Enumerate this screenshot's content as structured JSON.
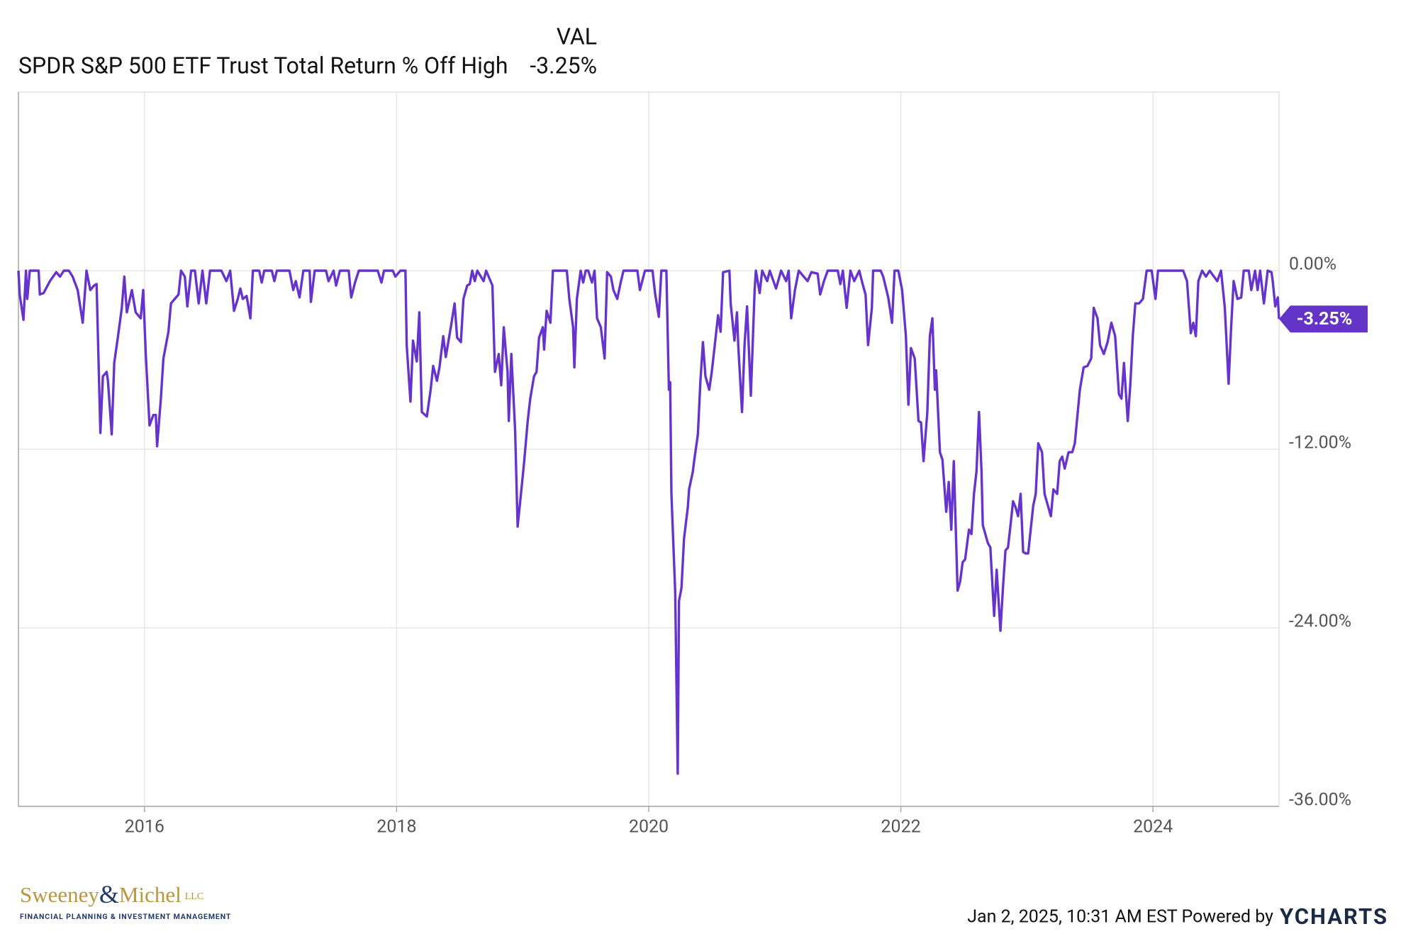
{
  "chart_data": {
    "type": "line",
    "legend": {
      "column_header": "VAL",
      "value_label": "-3.25%"
    },
    "xlim": [
      2015,
      2025
    ],
    "xticks": [
      2016,
      2018,
      2020,
      2022,
      2024
    ],
    "ylim": [
      -36,
      12
    ],
    "yticks": [
      {
        "value": 0,
        "label": "0.00%"
      },
      {
        "value": -12,
        "label": "-12.00%"
      },
      {
        "value": -24,
        "label": "-24.00%"
      },
      {
        "value": -36,
        "label": "-36.00%"
      }
    ],
    "grid": true,
    "x": [
      2015.0,
      2015.01,
      2015.04,
      2015.06,
      2015.07,
      2015.09,
      2015.16,
      2015.17,
      2015.2,
      2015.25,
      2015.3,
      2015.33,
      2015.36,
      2015.4,
      2015.43,
      2015.47,
      2015.51,
      2015.54,
      2015.57,
      2015.6,
      2015.62,
      2015.65,
      2015.67,
      2015.7,
      2015.71,
      2015.74,
      2015.76,
      2015.79,
      2015.82,
      2015.84,
      2015.86,
      2015.9,
      2015.93,
      2015.97,
      2015.99,
      2016.01,
      2016.04,
      2016.07,
      2016.09,
      2016.1,
      2016.13,
      2016.15,
      2016.19,
      2016.21,
      2016.24,
      2016.27,
      2016.29,
      2016.32,
      2016.34,
      2016.37,
      2016.4,
      2016.43,
      2016.46,
      2016.49,
      2016.52,
      2016.61,
      2016.65,
      2016.68,
      2016.71,
      2016.74,
      2016.76,
      2016.78,
      2016.81,
      2016.84,
      2016.86,
      2016.91,
      2016.93,
      2016.95,
      2017.01,
      2017.03,
      2017.05,
      2017.15,
      2017.18,
      2017.2,
      2017.23,
      2017.26,
      2017.31,
      2017.32,
      2017.35,
      2017.44,
      2017.46,
      2017.5,
      2017.52,
      2017.55,
      2017.62,
      2017.64,
      2017.67,
      2017.7,
      2017.85,
      2017.88,
      2017.9,
      2017.97,
      2017.99,
      2018.03,
      2018.07,
      2018.08,
      2018.11,
      2018.13,
      2018.16,
      2018.18,
      2018.2,
      2018.24,
      2018.27,
      2018.29,
      2018.32,
      2018.34,
      2018.37,
      2018.39,
      2018.43,
      2018.46,
      2018.48,
      2018.51,
      2018.53,
      2018.56,
      2018.58,
      2018.6,
      2018.62,
      2018.64,
      2018.69,
      2018.71,
      2018.76,
      2018.78,
      2018.81,
      2018.83,
      2018.85,
      2018.88,
      2018.89,
      2018.91,
      2018.94,
      2018.96,
      2018.99,
      2019.01,
      2019.04,
      2019.06,
      2019.09,
      2019.11,
      2019.13,
      2019.16,
      2019.17,
      2019.19,
      2019.22,
      2019.24,
      2019.35,
      2019.37,
      2019.4,
      2019.41,
      2019.43,
      2019.46,
      2019.48,
      2019.5,
      2019.52,
      2019.55,
      2019.57,
      2019.59,
      2019.62,
      2019.65,
      2019.67,
      2019.7,
      2019.72,
      2019.75,
      2019.78,
      2019.8,
      2019.91,
      2019.93,
      2019.97,
      2020.03,
      2020.05,
      2020.08,
      2020.1,
      2020.14,
      2020.16,
      2020.17,
      2020.18,
      2020.21,
      2020.23,
      2020.24,
      2020.26,
      2020.28,
      2020.31,
      2020.32,
      2020.35,
      2020.36,
      2020.39,
      2020.41,
      2020.43,
      2020.45,
      2020.48,
      2020.5,
      2020.52,
      2020.55,
      2020.57,
      2020.59,
      2020.64,
      2020.65,
      2020.68,
      2020.7,
      2020.71,
      2020.74,
      2020.76,
      2020.78,
      2020.81,
      2020.84,
      2020.85,
      2020.88,
      2020.9,
      2020.94,
      2020.96,
      2021.01,
      2021.05,
      2021.09,
      2021.11,
      2021.13,
      2021.16,
      2021.19,
      2021.26,
      2021.29,
      2021.34,
      2021.36,
      2021.39,
      2021.42,
      2021.5,
      2021.52,
      2021.54,
      2021.57,
      2021.6,
      2021.63,
      2021.67,
      2021.7,
      2021.72,
      2021.74,
      2021.77,
      2021.78,
      2021.84,
      2021.86,
      2021.9,
      2021.93,
      2021.95,
      2021.98,
      2022.01,
      2022.04,
      2022.06,
      2022.08,
      2022.11,
      2022.14,
      2022.16,
      2022.18,
      2022.21,
      2022.23,
      2022.25,
      2022.27,
      2022.28,
      2022.31,
      2022.33,
      2022.36,
      2022.38,
      2022.4,
      2022.42,
      2022.45,
      2022.47,
      2022.49,
      2022.51,
      2022.54,
      2022.56,
      2022.58,
      2022.6,
      2022.62,
      2022.64,
      2022.65,
      2022.67,
      2022.69,
      2022.71,
      2022.74,
      2022.76,
      2022.79,
      2022.81,
      2022.83,
      2022.85,
      2022.87,
      2022.89,
      2022.91,
      2022.93,
      2022.95,
      2022.97,
      2022.99,
      2023.01,
      2023.03,
      2023.05,
      2023.07,
      2023.09,
      2023.12,
      2023.14,
      2023.16,
      2023.19,
      2023.21,
      2023.24,
      2023.26,
      2023.28,
      2023.3,
      2023.33,
      2023.36,
      2023.38,
      2023.4,
      2023.42,
      2023.45,
      2023.48,
      2023.51,
      2023.53,
      2023.56,
      2023.58,
      2023.61,
      2023.64,
      2023.67,
      2023.7,
      2023.73,
      2023.75,
      2023.77,
      2023.8,
      2023.82,
      2023.84,
      2023.86,
      2023.89,
      2023.92,
      2023.95,
      2023.99,
      2024.02,
      2024.04,
      2024.24,
      2024.27,
      2024.3,
      2024.32,
      2024.34,
      2024.36,
      2024.39,
      2024.42,
      2024.45,
      2024.51,
      2024.54,
      2024.57,
      2024.6,
      2024.62,
      2024.64,
      2024.67,
      2024.7,
      2024.72,
      2024.76,
      2024.78,
      2024.81,
      2024.83,
      2024.85,
      2024.88,
      2024.91,
      2024.94,
      2024.95,
      2024.97,
      2024.99,
      2025.0
    ],
    "series": [
      {
        "name": "SPDR S&P 500 ETF Trust Total Return % Off High",
        "color": "#6633cc",
        "values": [
          0,
          -1.6,
          -3.3,
          0,
          -1.9,
          0,
          0,
          -1.6,
          -1.5,
          -0.7,
          -0.1,
          -0.4,
          0,
          0,
          -0.4,
          -1.3,
          -3.5,
          0,
          -1.3,
          -1.0,
          -0.9,
          -10.9,
          -7.1,
          -6.8,
          -7.4,
          -11.0,
          -6.2,
          -4.4,
          -2.5,
          -0.4,
          -2.8,
          -1.3,
          -2.8,
          -3.2,
          -1.3,
          -5.6,
          -10.4,
          -9.7,
          -9.7,
          -11.8,
          -8.6,
          -5.9,
          -4.1,
          -2.2,
          -1.9,
          -1.6,
          0,
          -0.4,
          -2.4,
          0,
          0,
          -2.2,
          0,
          -2.2,
          0,
          0,
          -0.7,
          0,
          -2.7,
          -1.9,
          -1.2,
          -1.9,
          -1.7,
          -3.2,
          0,
          0,
          -0.8,
          0,
          0,
          -0.7,
          0,
          0,
          -1.3,
          -0.7,
          -1.8,
          0,
          0,
          -2.1,
          0,
          0,
          -0.7,
          0,
          -1.0,
          0,
          0,
          -1.8,
          -0.8,
          0,
          0,
          -0.8,
          0,
          0,
          -0.4,
          0,
          0,
          -5.0,
          -8.8,
          -4.7,
          -6.1,
          -2.8,
          -9.5,
          -9.8,
          -8.0,
          -6.4,
          -7.4,
          -6.5,
          -4.4,
          -5.8,
          -3.8,
          -2.2,
          -4.5,
          -4.8,
          -1.9,
          -1.0,
          -0.9,
          0,
          -0.7,
          0,
          -0.7,
          0,
          -1.0,
          -6.8,
          -5.6,
          -7.7,
          -3.8,
          -6.8,
          -10.1,
          -5.6,
          -10.7,
          -17.2,
          -14.7,
          -13.0,
          -10.1,
          -8.6,
          -7.1,
          -6.8,
          -4.5,
          -3.8,
          -5.3,
          -2.7,
          -3.5,
          0,
          0,
          -1.9,
          -3.8,
          -6.5,
          -1.9,
          0,
          -0.8,
          0,
          0,
          -0.8,
          0,
          -3.2,
          -3.8,
          -5.9,
          -0.1,
          -0.4,
          -1.3,
          -1.9,
          -0.7,
          0,
          0,
          -1.3,
          0,
          0,
          -1.5,
          -3.1,
          0,
          0,
          -8.0,
          -7.5,
          -15.0,
          -21.6,
          -33.8,
          -22.2,
          -21.3,
          -18.0,
          -15.9,
          -14.7,
          -13.5,
          -12.8,
          -11.0,
          -7.4,
          -4.8,
          -7.1,
          -8.0,
          -6.8,
          -5.3,
          -3.0,
          -4.1,
          -0.1,
          0,
          -2.2,
          -4.7,
          -2.8,
          -5.0,
          -9.5,
          -5.0,
          -2.4,
          -8.4,
          -1.3,
          0,
          -1.5,
          0,
          -0.7,
          0,
          -1.2,
          0,
          -0.7,
          0,
          -3.2,
          -1.3,
          0,
          -0.7,
          -0.1,
          -0.2,
          -1.6,
          -0.7,
          0,
          0,
          -0.9,
          0,
          -2.5,
          0,
          -0.7,
          0,
          -1.0,
          -1.6,
          -5.0,
          -2.5,
          0,
          0,
          -0.4,
          -1.8,
          -3.5,
          0,
          0,
          -1.3,
          -4.4,
          -9.0,
          -5.2,
          -5.9,
          -10.1,
          -10.2,
          -12.8,
          -9.5,
          -4.4,
          -3.2,
          -8.0,
          -6.7,
          -12.2,
          -12.7,
          -16.2,
          -14.2,
          -17.4,
          -12.8,
          -21.5,
          -20.9,
          -19.6,
          -19.4,
          -17.4,
          -17.7,
          -15.0,
          -13.5,
          -9.5,
          -13.5,
          -17.1,
          -17.7,
          -18.3,
          -18.6,
          -23.2,
          -20.1,
          -24.2,
          -21.3,
          -18.8,
          -18.6,
          -17.1,
          -15.5,
          -15.9,
          -16.5,
          -15.0,
          -18.9,
          -19.0,
          -19.0,
          -17.4,
          -15.8,
          -15.0,
          -11.6,
          -12.2,
          -15.0,
          -15.6,
          -16.5,
          -14.7,
          -15.0,
          -12.8,
          -12.5,
          -13.3,
          -12.2,
          -12.2,
          -11.6,
          -9.8,
          -8.0,
          -6.5,
          -6.4,
          -5.9,
          -2.5,
          -3.2,
          -5.0,
          -5.6,
          -4.8,
          -3.5,
          -4.4,
          -8.3,
          -8.6,
          -6.2,
          -10.1,
          -7.7,
          -4.4,
          -2.2,
          -2.2,
          -1.9,
          0,
          0,
          -1.9,
          0,
          0,
          -0.7,
          -4.2,
          -3.5,
          -4.4,
          -0.7,
          0,
          -0.4,
          0,
          -0.7,
          0,
          -2.5,
          -7.6,
          -3.8,
          -0.7,
          -1.9,
          -1.8,
          0,
          0,
          -1.3,
          0,
          -1.3,
          0,
          -2.2,
          0,
          -0.1,
          -0.7,
          -2.4,
          -1.8,
          -3.25
        ]
      }
    ]
  },
  "footer": {
    "timestamp": "Jan 2, 2025, 10:31 AM EST Powered by",
    "brand": "YCHARTS",
    "logo": {
      "name_first": "Sweeney",
      "ampersand": "&",
      "name_second": "Michel",
      "suffix": "LLC",
      "tagline": "FINANCIAL PLANNING & INVESTMENT MANAGEMENT"
    }
  }
}
